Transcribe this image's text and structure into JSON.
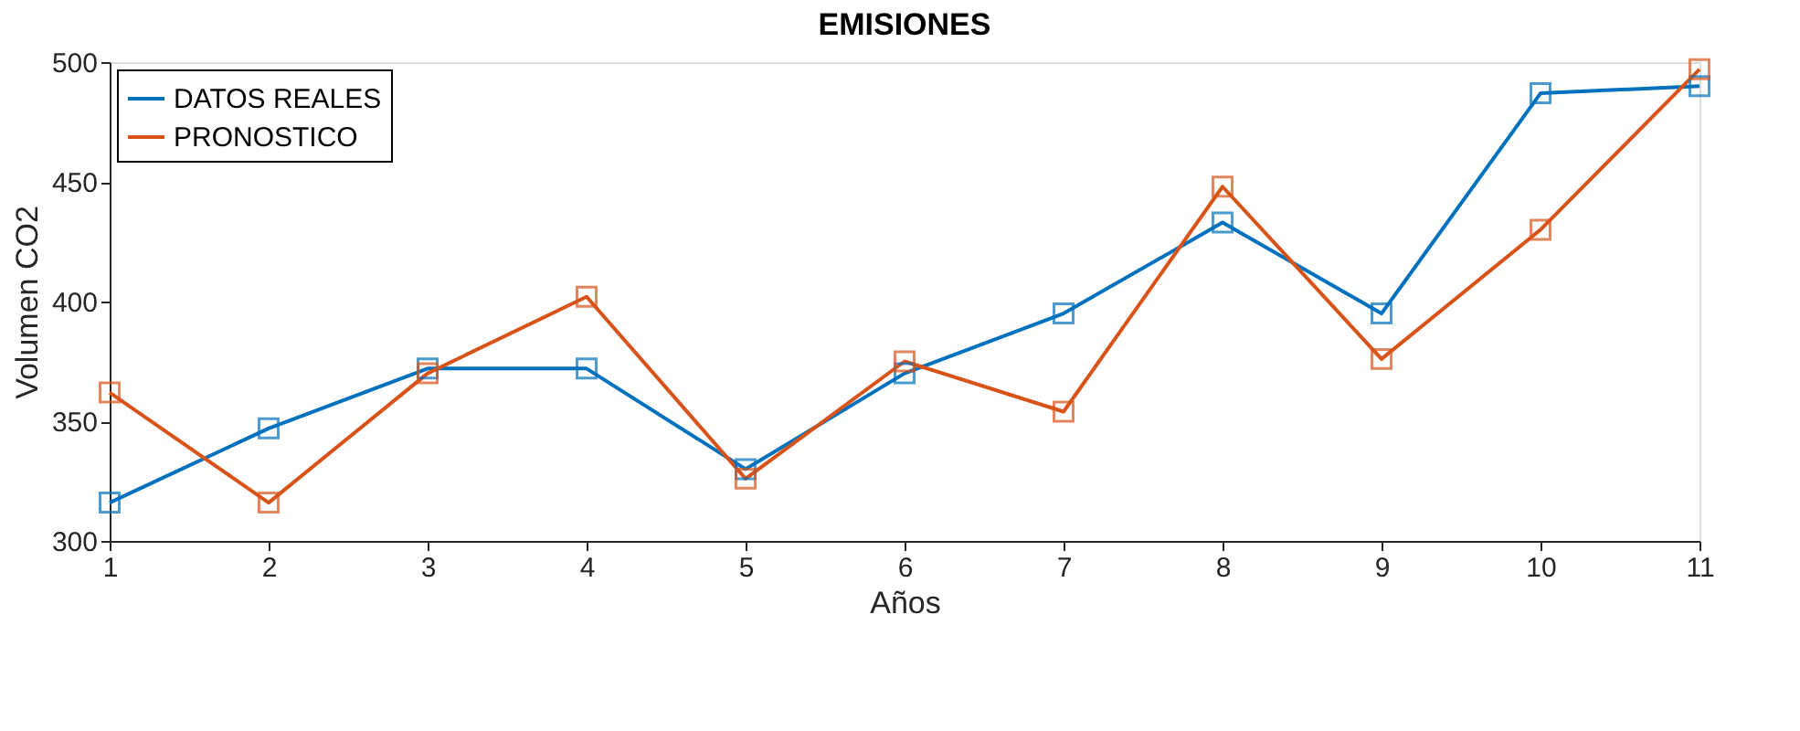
{
  "chart_data": {
    "type": "line",
    "title": "EMISIONES",
    "xlabel": "Años",
    "ylabel": "Volumen CO2",
    "x": [
      1,
      2,
      3,
      4,
      5,
      6,
      7,
      8,
      9,
      10,
      11
    ],
    "series": [
      {
        "name": "DATOS REALES",
        "color": "#0072bd",
        "values": [
          316,
          347,
          372,
          372,
          330,
          370,
          395,
          433,
          395,
          487,
          490
        ]
      },
      {
        "name": "PRONOSTICO",
        "color": "#d95319",
        "values": [
          362,
          316,
          370,
          402,
          326,
          375,
          354,
          448,
          376,
          430,
          497
        ]
      }
    ],
    "xlim": [
      1,
      11
    ],
    "xticks": [
      1,
      2,
      3,
      4,
      5,
      6,
      7,
      8,
      9,
      10,
      11
    ],
    "ylim": [
      300,
      500
    ],
    "yticks": [
      300,
      350,
      400,
      450,
      500
    ],
    "grid": false,
    "legend": "top left",
    "marker": "square",
    "line_style": "solid"
  }
}
